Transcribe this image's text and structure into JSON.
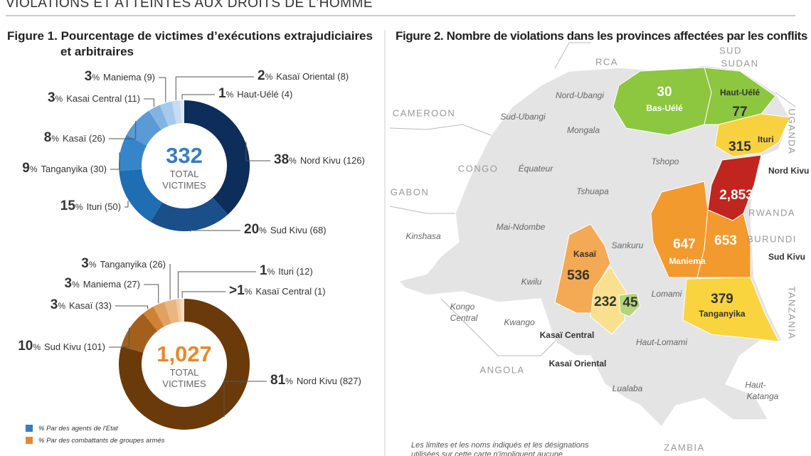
{
  "header": {
    "title": "VIOLATIONS ET ATTEINTES AUX DROITS DE L'HOMME"
  },
  "figure1": {
    "title": "Figure 1. Pourcentage de victimes d’exécutions extrajudiciaires et arbitraires"
  },
  "legend": [
    {
      "label": "% Par des agents de l'Etat",
      "color": "#3a7cc0"
    },
    {
      "label": "% Par des combattants de groupes armés",
      "color": "#e8872a"
    }
  ],
  "chart_data": [
    {
      "type": "donut",
      "value_suffix": "%",
      "categories": [
        "Nord Kivu (126)",
        "Sud Kivu (68)",
        "Ituri (50)",
        "Tanganyika (30)",
        "Kasaï (26)",
        "Kasai Central (11)",
        "Maniema (9)",
        "Kasaï Oriental (8)",
        "Haut-Uélé (4)"
      ],
      "values": [
        38,
        20,
        15,
        9,
        8,
        3,
        3,
        2,
        1
      ],
      "colors": [
        "#0d2d5a",
        "#1a4f8a",
        "#1f6db3",
        "#3585c8",
        "#5a9ad6",
        "#82b4e2",
        "#a6caeb",
        "#c6dcf1",
        "#deebf7"
      ],
      "total": 332,
      "total_color": "#3a7cc0",
      "center_lines": [
        "TOTAL",
        "VICTIMES"
      ]
    },
    {
      "type": "donut",
      "value_suffix": "%",
      "categories": [
        "Nord Kivu (827)",
        "Sud Kivu (101)",
        "Kasaï (33)",
        "Maniema (27)",
        "Tanganyika (26)",
        "Ituri (12)",
        "Kasaï Central (1)"
      ],
      "values": [
        81,
        10,
        3,
        3,
        3,
        1,
        1
      ],
      "value_labels": [
        "81",
        "10",
        "3",
        "3",
        "3",
        "1",
        ">1"
      ],
      "colors": [
        "#6b3a0a",
        "#a3601c",
        "#cf8236",
        "#e1a160",
        "#eab680",
        "#f2cba2",
        "#f7dfc4"
      ],
      "total": {
        "value": 1027,
        "label": "1,027"
      },
      "total_color": "#e8872a",
      "center_lines": [
        "TOTAL",
        "VICTIMES"
      ]
    },
    {
      "type": "map",
      "title": "Figure 2. Nombre de violations dans les provinces affectées par les conflits",
      "categories": [
        "Bas-Uélé",
        "Haut-Uélé",
        "Ituri",
        "Nord Kivu",
        "Maniema",
        "Sud Kivu",
        "Tanganyika",
        "Kasaï",
        "Kasaï Central",
        "Kasaï Oriental"
      ],
      "values": [
        30,
        77,
        315,
        2853,
        647,
        653,
        379,
        536,
        232,
        45
      ],
      "value_labels": [
        "30",
        "77",
        "315",
        "2,853",
        "647",
        "653",
        "379",
        "536",
        "232",
        "45"
      ],
      "colors": [
        "#8dc63f",
        "#8dc63f",
        "#f7d23e",
        "#c0251f",
        "#f29a2e",
        "#f29a2e",
        "#f9d43e",
        "#f4a954",
        "#f8e08e",
        "#b3d67a"
      ],
      "countries": [
        "RCA",
        "SUD",
        "SUDAN",
        "CAMEROON",
        "CONGO",
        "GABON",
        "ANGOLA",
        "ZAMBIA",
        "UGANDA",
        "RWANDA",
        "BURUNDI",
        "TANZANIA"
      ],
      "places": [
        "Nord-Ubangi",
        "Sud-Ubangi",
        "Mongala",
        "Équateur",
        "Tshopo",
        "Tshuapa",
        "Mai-Ndombe",
        "Sankuru",
        "Kinshasa",
        "Kongo",
        "Central",
        "Kwilu",
        "Kwango",
        "Lomami",
        "Haut-Lomami",
        "Lualaba",
        "Haut-",
        "Katanga"
      ],
      "note": "Les limites et les noms indiqués et les désignations utilisées sur cette carte n'impliquent aucune approbation"
    }
  ]
}
